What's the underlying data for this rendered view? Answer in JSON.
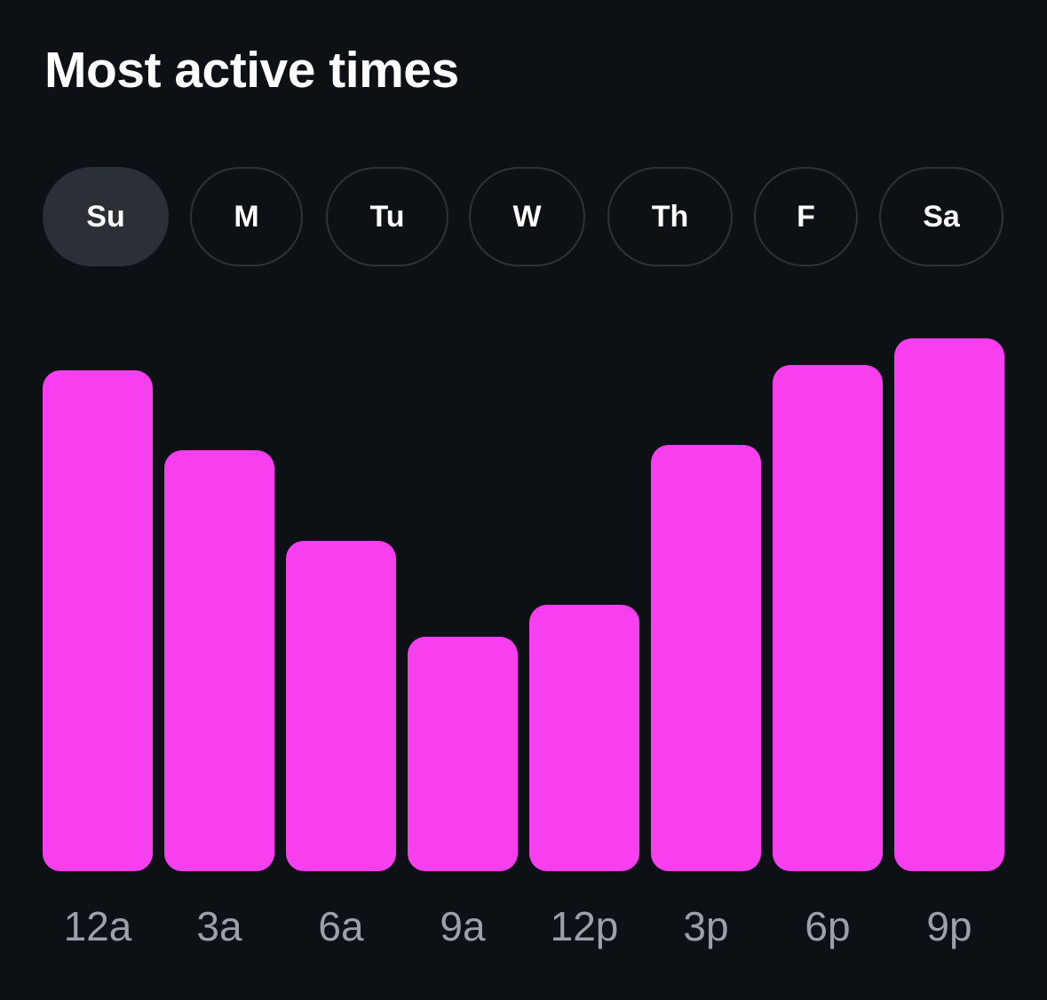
{
  "title": "Most active times",
  "days": [
    {
      "label": "Su",
      "active": true
    },
    {
      "label": "M",
      "active": false
    },
    {
      "label": "Tu",
      "active": false
    },
    {
      "label": "W",
      "active": false
    },
    {
      "label": "Th",
      "active": false
    },
    {
      "label": "F",
      "active": false
    },
    {
      "label": "Sa",
      "active": false
    }
  ],
  "colors": {
    "bar": "#f73ff0",
    "background": "#0d1014",
    "tick": "#9ba1a6",
    "active_pill": "#2b3036"
  },
  "chart_data": {
    "type": "bar",
    "title": "Most active times",
    "categories": [
      "12a",
      "3a",
      "6a",
      "9a",
      "12p",
      "3p",
      "6p",
      "9p"
    ],
    "values": [
      94,
      79,
      62,
      44,
      50,
      80,
      95,
      100
    ],
    "xlabel": "",
    "ylabel": "",
    "ylim": [
      0,
      100
    ],
    "grid": false,
    "legend": "none"
  }
}
